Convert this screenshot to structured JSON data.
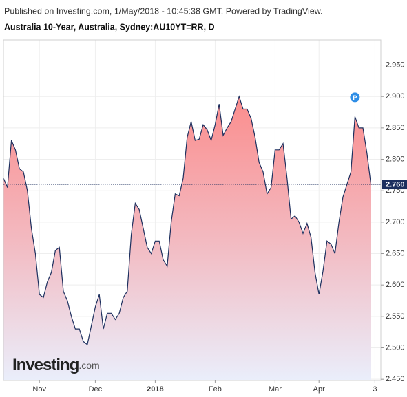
{
  "chart_data": {
    "type": "area",
    "source": "Published on Investing.com, 1/May/2018 - 10:45:38 GMT, Powered by TradingView.",
    "title": "Australia 10-Year, Australia, Sydney:AU10YT=RR, D",
    "logo": [
      "Investing",
      ".com"
    ],
    "annotation": "P",
    "categories": [
      null,
      null,
      null,
      null,
      null,
      null,
      null,
      null,
      null,
      "Nov",
      null,
      null,
      null,
      null,
      null,
      null,
      null,
      null,
      null,
      null,
      null,
      null,
      null,
      "Dec",
      null,
      null,
      null,
      null,
      null,
      null,
      null,
      null,
      null,
      null,
      null,
      null,
      null,
      null,
      "2018",
      null,
      null,
      null,
      null,
      null,
      null,
      null,
      null,
      null,
      null,
      null,
      null,
      null,
      null,
      "Feb",
      null,
      null,
      null,
      null,
      null,
      null,
      null,
      null,
      null,
      null,
      null,
      null,
      null,
      null,
      "Mar",
      null,
      null,
      null,
      null,
      null,
      null,
      null,
      null,
      null,
      null,
      "Apr",
      null,
      null,
      null,
      null,
      null,
      null,
      null,
      null,
      null,
      null,
      null,
      null,
      null,
      "3"
    ],
    "series": [
      {
        "name": "AU10YT=RR",
        "color": "#1c2f5e",
        "values": [
          2.77,
          2.755,
          2.83,
          2.815,
          2.785,
          2.78,
          2.75,
          2.69,
          2.65,
          2.585,
          2.58,
          2.605,
          2.62,
          2.655,
          2.66,
          2.59,
          2.575,
          2.55,
          2.53,
          2.53,
          2.51,
          2.505,
          2.535,
          2.565,
          2.585,
          2.53,
          2.555,
          2.555,
          2.545,
          2.555,
          2.58,
          2.59,
          2.68,
          2.73,
          2.72,
          2.69,
          2.66,
          2.65,
          2.67,
          2.67,
          2.64,
          2.63,
          2.7,
          2.745,
          2.742,
          2.77,
          2.835,
          2.86,
          2.83,
          2.832,
          2.855,
          2.847,
          2.83,
          2.855,
          2.888,
          2.838,
          2.85,
          2.86,
          2.88,
          2.9,
          2.88,
          2.88,
          2.865,
          2.835,
          2.795,
          2.78,
          2.745,
          2.755,
          2.815,
          2.815,
          2.825,
          2.77,
          2.705,
          2.71,
          2.7,
          2.682,
          2.698,
          2.676,
          2.62,
          2.585,
          2.622,
          2.67,
          2.665,
          2.65,
          2.7,
          2.74,
          2.76,
          2.78,
          2.868,
          2.85,
          2.85,
          2.81,
          2.76,
          null
        ]
      }
    ],
    "last_value": {
      "value": 2.76,
      "label": "2.760"
    },
    "ylim": [
      2.448,
      2.99
    ],
    "yticks": [
      {
        "value": 2.45,
        "label": "2.450"
      },
      {
        "value": 2.5,
        "label": "2.500"
      },
      {
        "value": 2.55,
        "label": "2.550"
      },
      {
        "value": 2.6,
        "label": "2.600"
      },
      {
        "value": 2.65,
        "label": "2.650"
      },
      {
        "value": 2.7,
        "label": "2.700"
      },
      {
        "value": 2.75,
        "label": "2.750"
      },
      {
        "value": 2.8,
        "label": "2.800"
      },
      {
        "value": 2.85,
        "label": "2.850"
      },
      {
        "value": 2.9,
        "label": "2.900"
      },
      {
        "value": 2.95,
        "label": "2.950"
      }
    ],
    "grid": true
  }
}
